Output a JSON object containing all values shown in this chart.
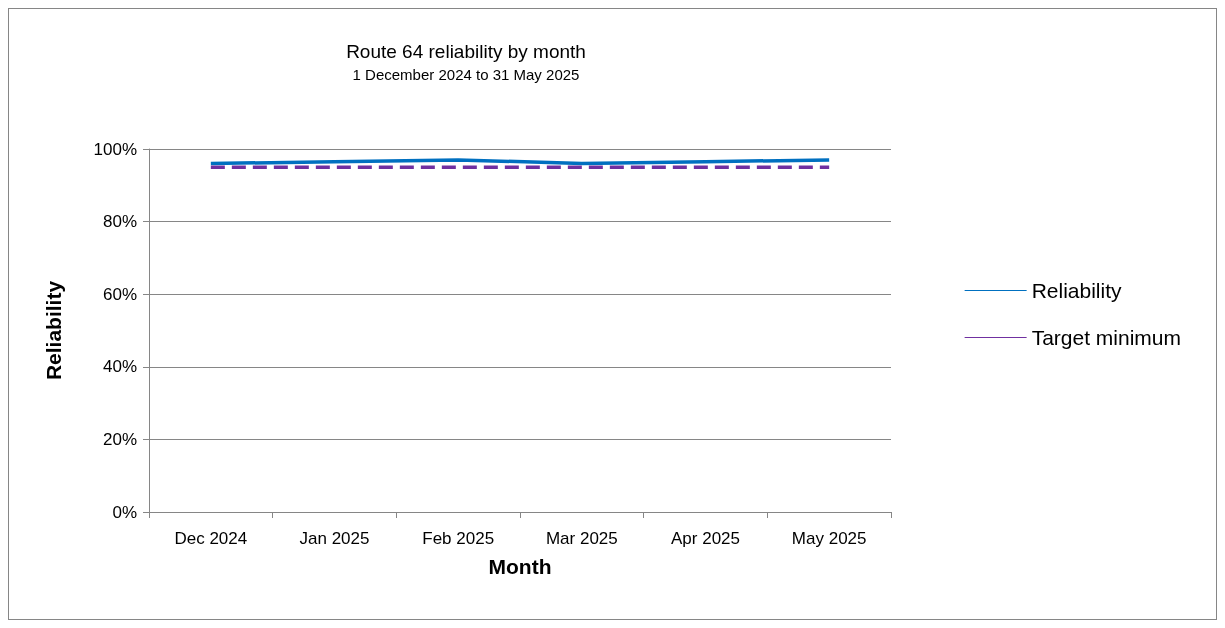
{
  "chart_data": {
    "type": "line",
    "title": "Route 64 reliability by month",
    "subtitle": "1 December 2024 to 31 May 2025",
    "xlabel": "Month",
    "ylabel": "Reliability",
    "categories": [
      "Dec 2024",
      "Jan 2025",
      "Feb 2025",
      "Mar 2025",
      "Apr 2025",
      "May 2025"
    ],
    "series": [
      {
        "name": "Reliability",
        "color": "#0070c0",
        "values": [
          96,
          96.5,
          97,
          96,
          96.5,
          97
        ],
        "line_style": "solid"
      },
      {
        "name": "Target minimum",
        "color": "#7030a0",
        "values": [
          95,
          95,
          95,
          95,
          95,
          95
        ],
        "line_style": "dashed"
      }
    ],
    "ylim": [
      0,
      100
    ],
    "yticks": [
      {
        "value": 0,
        "label": "0%"
      },
      {
        "value": 20,
        "label": "20%"
      },
      {
        "value": 40,
        "label": "40%"
      },
      {
        "value": 60,
        "label": "60%"
      },
      {
        "value": 80,
        "label": "80%"
      },
      {
        "value": 100,
        "label": "100%"
      }
    ],
    "grid": "y",
    "legend": "right",
    "marker": "none"
  }
}
